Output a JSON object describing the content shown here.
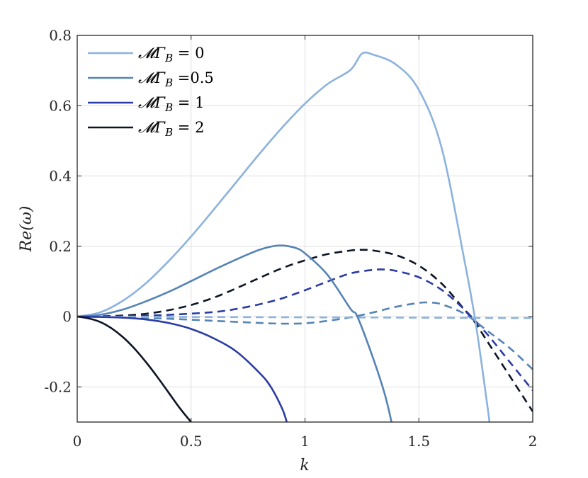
{
  "chart_data": {
    "type": "line",
    "title": "",
    "xlabel": "k",
    "ylabel": "Re(ω)",
    "xlim": [
      0,
      2
    ],
    "ylim": [
      -0.3,
      0.8
    ],
    "xticks": [
      0,
      0.5,
      1,
      1.5,
      2
    ],
    "xtick_labels": [
      "0",
      "0.5",
      "1",
      "1.5",
      "2"
    ],
    "yticks": [
      -0.2,
      0,
      0.2,
      0.4,
      0.6,
      0.8
    ],
    "ytick_labels": [
      "-0.2",
      "0",
      "0.2",
      "0.4",
      "0.6",
      "0.8"
    ],
    "grid": true,
    "legend_position": "top-left",
    "series": [
      {
        "name": "𝓜Γ_B = 0",
        "label_main": "𝓜Γ",
        "label_sub": "B",
        "label_rest": " = 0",
        "color": "#8CB2DE",
        "dash": "solid",
        "x": [
          0,
          0.1,
          0.2,
          0.3,
          0.4,
          0.5,
          0.6,
          0.7,
          0.8,
          0.9,
          1.0,
          1.1,
          1.2,
          1.25,
          1.3,
          1.4,
          1.5,
          1.6,
          1.7,
          1.75,
          1.8,
          1.81
        ],
        "y": [
          0,
          0.012,
          0.045,
          0.094,
          0.157,
          0.228,
          0.305,
          0.384,
          0.463,
          0.538,
          0.606,
          0.662,
          0.702,
          0.748,
          0.745,
          0.717,
          0.645,
          0.48,
          0.16,
          -0.02,
          -0.25,
          -0.3
        ]
      },
      {
        "name": "𝓜Γ_B =0.5",
        "label_main": "𝓜Γ",
        "label_sub": "B",
        "label_rest": " =0.5",
        "color": "#5583B5",
        "dash": "solid",
        "x": [
          0,
          0.1,
          0.2,
          0.3,
          0.4,
          0.5,
          0.6,
          0.7,
          0.8,
          0.88,
          0.95,
          1.0,
          1.1,
          1.2,
          1.23,
          1.3,
          1.35,
          1.38
        ],
        "y": [
          0,
          0.005,
          0.02,
          0.043,
          0.07,
          0.101,
          0.133,
          0.163,
          0.19,
          0.202,
          0.197,
          0.18,
          0.118,
          0.022,
          0,
          -0.12,
          -0.22,
          -0.3
        ]
      },
      {
        "name": "𝓜Γ_B = 1",
        "label_main": "𝓜Γ",
        "label_sub": "B",
        "label_rest": " = 1",
        "color": "#2B3BA5",
        "dash": "solid",
        "x": [
          0,
          0.1,
          0.2,
          0.3,
          0.4,
          0.5,
          0.6,
          0.7,
          0.8,
          0.85,
          0.9,
          0.92
        ],
        "y": [
          0,
          -0.001,
          -0.003,
          -0.008,
          -0.018,
          -0.035,
          -0.062,
          -0.1,
          -0.16,
          -0.2,
          -0.262,
          -0.3
        ]
      },
      {
        "name": "𝓜Γ_B = 2",
        "label_main": "𝓜Γ",
        "label_sub": "B",
        "label_rest": " = 2",
        "color": "#0C1526",
        "dash": "solid",
        "x": [
          0,
          0.05,
          0.1,
          0.15,
          0.2,
          0.25,
          0.3,
          0.35,
          0.4,
          0.45,
          0.5
        ],
        "y": [
          0,
          -0.005,
          -0.015,
          -0.033,
          -0.058,
          -0.09,
          -0.128,
          -0.17,
          -0.215,
          -0.26,
          -0.3
        ]
      },
      {
        "name": "",
        "color": "#0C1526",
        "dash": "dashed",
        "x": [
          0,
          0.1,
          0.2,
          0.3,
          0.4,
          0.5,
          0.6,
          0.7,
          0.8,
          0.9,
          1.0,
          1.1,
          1.2,
          1.25,
          1.3,
          1.4,
          1.5,
          1.6,
          1.7,
          1.75,
          1.8,
          1.9,
          2.0
        ],
        "y": [
          0,
          0.001,
          0.003,
          0.008,
          0.018,
          0.033,
          0.054,
          0.081,
          0.11,
          0.138,
          0.16,
          0.178,
          0.188,
          0.19,
          0.188,
          0.175,
          0.145,
          0.094,
          0.02,
          -0.02,
          -0.07,
          -0.17,
          -0.27
        ]
      },
      {
        "name": "",
        "color": "#2B3BA5",
        "dash": "dashed",
        "x": [
          0,
          0.2,
          0.4,
          0.6,
          0.7,
          0.8,
          0.9,
          1.0,
          1.1,
          1.2,
          1.3,
          1.35,
          1.4,
          1.5,
          1.6,
          1.7,
          1.8,
          1.9,
          2.0
        ],
        "y": [
          0,
          0.001,
          0.005,
          0.013,
          0.022,
          0.035,
          0.052,
          0.075,
          0.1,
          0.123,
          0.133,
          0.134,
          0.13,
          0.112,
          0.076,
          0.02,
          -0.05,
          -0.13,
          -0.21
        ]
      },
      {
        "name": "",
        "color": "#5583B5",
        "dash": "dashed",
        "x": [
          0,
          0.2,
          0.4,
          0.6,
          0.8,
          0.9,
          1.0,
          1.1,
          1.2,
          1.3,
          1.4,
          1.5,
          1.55,
          1.6,
          1.7,
          1.8,
          1.9,
          2.0
        ],
        "y": [
          0,
          -0.002,
          -0.006,
          -0.012,
          -0.018,
          -0.02,
          -0.019,
          -0.012,
          -0.002,
          0.012,
          0.028,
          0.039,
          0.04,
          0.035,
          0.008,
          -0.04,
          -0.09,
          -0.15
        ]
      },
      {
        "name": "",
        "color": "#8CB2DE",
        "dash": "dashed",
        "x": [
          0,
          0.5,
          1.0,
          1.5,
          1.8,
          2.0
        ],
        "y": [
          0,
          -0.001,
          -0.002,
          -0.003,
          -0.004,
          -0.004
        ]
      }
    ]
  }
}
